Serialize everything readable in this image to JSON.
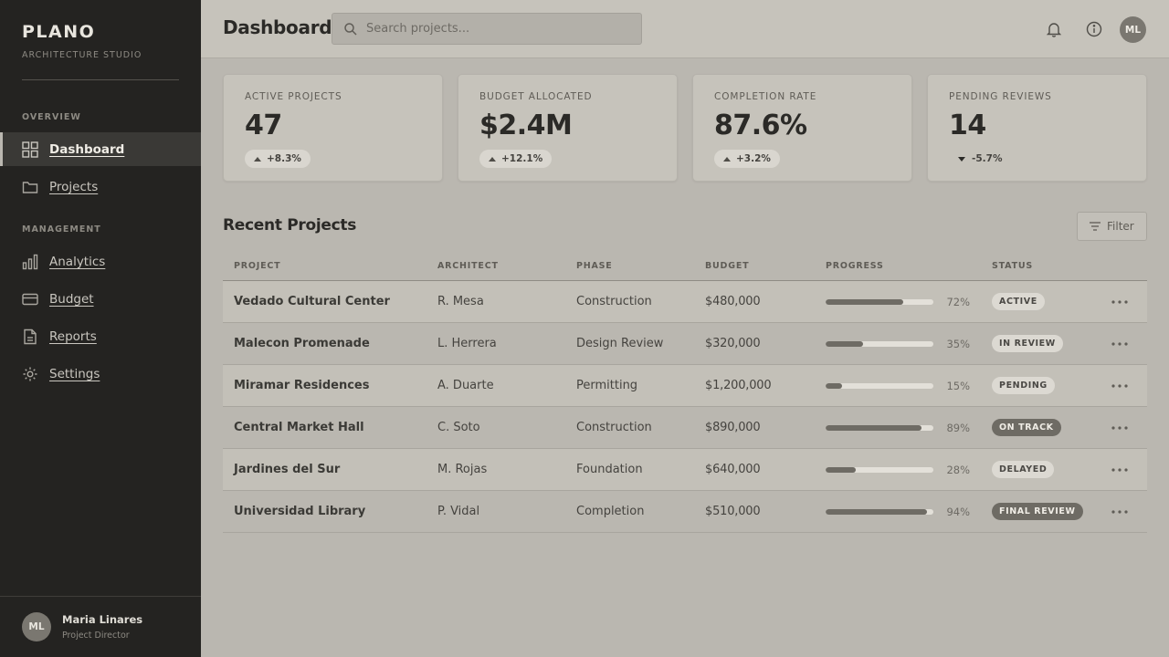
{
  "brand": {
    "name": "PLANO",
    "subtitle": "ARCHITECTURE STUDIO"
  },
  "sidebar": {
    "sections": [
      {
        "label": "OVERVIEW",
        "items": [
          {
            "label": "Dashboard",
            "icon": "grid-icon",
            "active": true
          },
          {
            "label": "Projects",
            "icon": "folder-icon"
          }
        ]
      },
      {
        "label": "MANAGEMENT",
        "items": [
          {
            "label": "Analytics",
            "icon": "bar-chart-icon"
          },
          {
            "label": "Budget",
            "icon": "credit-card-icon"
          },
          {
            "label": "Reports",
            "icon": "document-icon"
          },
          {
            "label": "Settings",
            "icon": "gear-icon"
          }
        ]
      }
    ],
    "user": {
      "initials": "ML",
      "name": "Maria Linares",
      "role": "Project Director"
    }
  },
  "header": {
    "title": "Dashboard",
    "search_placeholder": "Search projects...",
    "icons": [
      "bell-icon",
      "info-icon"
    ],
    "avatar_initials": "ML"
  },
  "stats": [
    {
      "label": "ACTIVE PROJECTS",
      "value": "47",
      "delta": "+8.3%",
      "trend": "up"
    },
    {
      "label": "BUDGET ALLOCATED",
      "value": "$2.4M",
      "delta": "+12.1%",
      "trend": "up"
    },
    {
      "label": "COMPLETION RATE",
      "value": "87.6%",
      "delta": "+3.2%",
      "trend": "up"
    },
    {
      "label": "PENDING REVIEWS",
      "value": "14",
      "delta": "-5.7%",
      "trend": "down"
    }
  ],
  "projects": {
    "title": "Recent Projects",
    "filter_label": "Filter",
    "columns": [
      "PROJECT",
      "ARCHITECT",
      "PHASE",
      "BUDGET",
      "PROGRESS",
      "STATUS"
    ],
    "rows": [
      {
        "project": "Vedado Cultural Center",
        "architect": "R. Mesa",
        "phase": "Construction",
        "budget": "$480,000",
        "progress": 72,
        "progress_label": "72%",
        "status": "ACTIVE",
        "status_style": "light"
      },
      {
        "project": "Malecon Promenade",
        "architect": "L. Herrera",
        "phase": "Design Review",
        "budget": "$320,000",
        "progress": 35,
        "progress_label": "35%",
        "status": "IN REVIEW",
        "status_style": "light"
      },
      {
        "project": "Miramar Residences",
        "architect": "A. Duarte",
        "phase": "Permitting",
        "budget": "$1,200,000",
        "progress": 15,
        "progress_label": "15%",
        "status": "PENDING",
        "status_style": "light"
      },
      {
        "project": "Central Market Hall",
        "architect": "C. Soto",
        "phase": "Construction",
        "budget": "$890,000",
        "progress": 89,
        "progress_label": "89%",
        "status": "ON TRACK",
        "status_style": "dark"
      },
      {
        "project": "Jardines del Sur",
        "architect": "M. Rojas",
        "phase": "Foundation",
        "budget": "$640,000",
        "progress": 28,
        "progress_label": "28%",
        "status": "DELAYED",
        "status_style": "light"
      },
      {
        "project": "Universidad Library",
        "architect": "P. Vidal",
        "phase": "Completion",
        "budget": "$510,000",
        "progress": 94,
        "progress_label": "94%",
        "status": "FINAL REVIEW",
        "status_style": "dark"
      }
    ]
  },
  "colors": {
    "sidebar_bg": "#242321",
    "main_bg": "#bab7b0",
    "card_bg": "#c6c3bb",
    "accent": "#6e6b64"
  }
}
